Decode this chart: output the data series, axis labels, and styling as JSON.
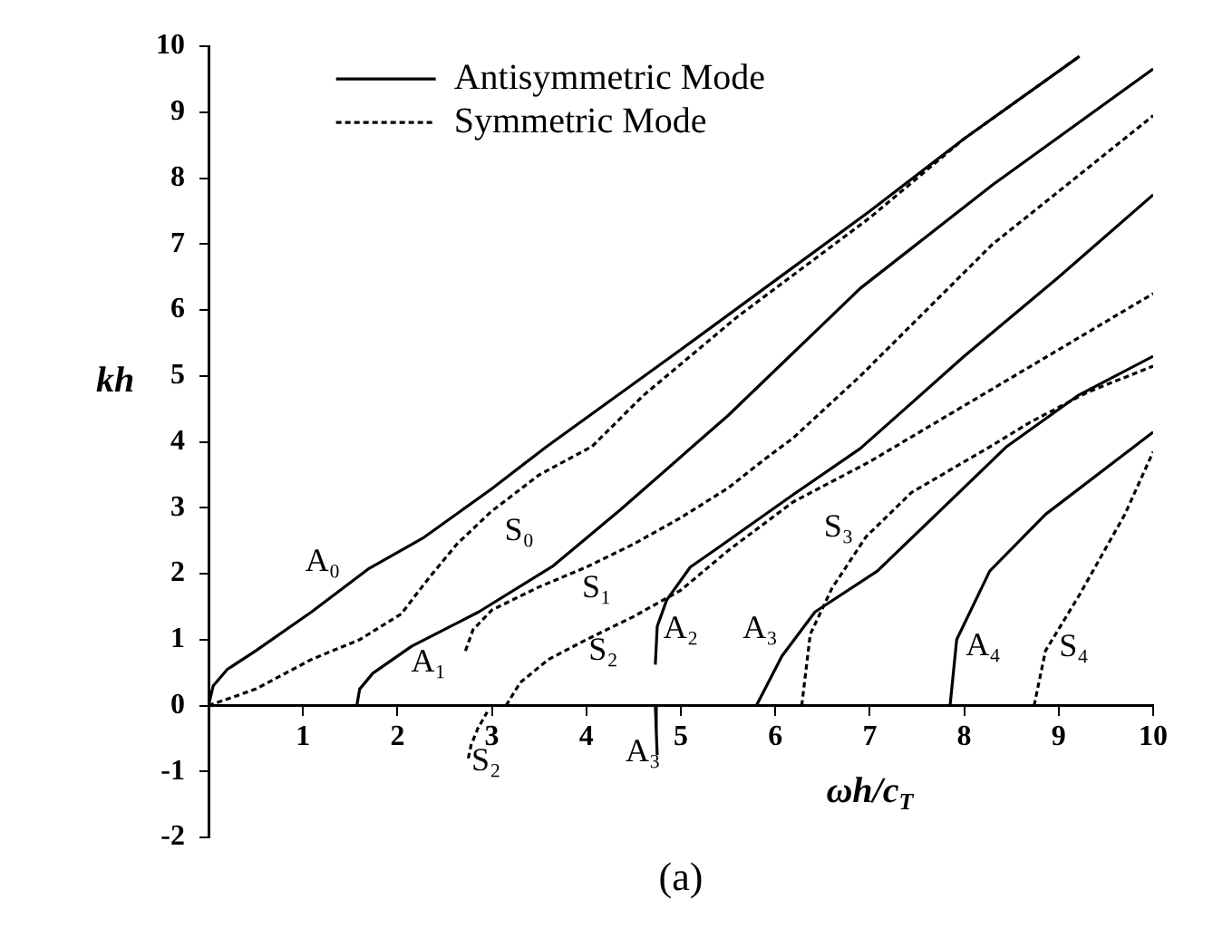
{
  "chart_data": {
    "type": "line",
    "xlabel": "ωh/c$_{T}$",
    "ylabel": "kh",
    "xlim": [
      0,
      10
    ],
    "ylim": [
      -2,
      10
    ],
    "xticks": [
      1,
      2,
      3,
      4,
      5,
      6,
      7,
      8,
      9,
      10
    ],
    "yticks": [
      -2,
      -1,
      0,
      1,
      2,
      3,
      4,
      5,
      6,
      7,
      8,
      9,
      10
    ],
    "grid": false,
    "legend": "top left",
    "marker": "none",
    "series": [
      {
        "name": "Antisymmetric Mode",
        "color": "#000000",
        "line_style": "solid",
        "x": [
          0,
          0.05,
          0.2,
          0.5,
          1.09,
          1.69,
          2.28,
          2.99,
          3.58,
          5,
          6,
          7,
          8,
          9.22
        ],
        "values": [
          0,
          0.3,
          0.55,
          0.83,
          1.42,
          2.07,
          2.55,
          3.28,
          3.93,
          5.4,
          6.45,
          7.5,
          8.6,
          9.85
        ]
      },
      {
        "name": "Symmetric Mode",
        "color": "#000000",
        "line_style": "dashed",
        "x": [
          0,
          0.5,
          1.09,
          1.6,
          2.04,
          2.33,
          2.63,
          2.99,
          3.5,
          4.06,
          4.6,
          5.6,
          7,
          8,
          9.22
        ],
        "values": [
          0,
          0.25,
          0.7,
          1.0,
          1.39,
          1.93,
          2.45,
          2.94,
          3.5,
          3.93,
          4.7,
          5.9,
          7.4,
          8.6,
          9.85
        ]
      },
      {
        "color": "#000000",
        "line_style": "solid",
        "x": [
          1.57,
          1.6,
          1.74,
          2.15,
          2.86,
          3.65,
          4.36,
          5.5,
          6.9,
          8.3,
          10
        ],
        "values": [
          0,
          0.25,
          0.49,
          0.9,
          1.42,
          2.12,
          2.97,
          4.4,
          6.33,
          7.9,
          9.66
        ]
      },
      {
        "color": "#000000",
        "line_style": "dashed",
        "x": [
          2.72,
          2.8,
          3.0,
          3.5,
          4,
          4.5,
          5,
          5.5,
          5.89,
          6.19,
          6.9,
          8.3,
          9,
          10
        ],
        "values": [
          0.83,
          1.15,
          1.45,
          1.8,
          2.1,
          2.45,
          2.85,
          3.3,
          3.74,
          4.06,
          5.0,
          7.0,
          7.8,
          8.95
        ]
      },
      {
        "color": "#000000",
        "line_style": "dashed",
        "x": [
          3.15,
          3.3,
          3.6,
          4,
          4.5,
          5,
          5.5,
          6.19,
          7,
          8,
          9,
          10
        ],
        "values": [
          0,
          0.35,
          0.7,
          1.0,
          1.35,
          1.75,
          2.35,
          3.09,
          3.7,
          4.55,
          5.4,
          6.25
        ]
      },
      {
        "color": "#000000",
        "line_style": "dashed",
        "x": [
          2.75,
          2.78,
          2.85,
          2.95
        ],
        "values": [
          -0.8,
          -0.6,
          -0.35,
          -0.1
        ]
      },
      {
        "color": "#000000",
        "line_style": "solid",
        "x": [
          4.73,
          4.75,
          4.85,
          5.1,
          5.4,
          6.19,
          6.9,
          8,
          9,
          10
        ],
        "values": [
          0.62,
          1.2,
          1.6,
          2.1,
          2.4,
          3.2,
          3.9,
          5.3,
          6.5,
          7.75
        ]
      },
      {
        "color": "#000000",
        "line_style": "solid",
        "x": [
          4.73,
          4.74,
          4.75
        ],
        "values": [
          0,
          -0.4,
          -0.75
        ]
      },
      {
        "color": "#000000",
        "line_style": "solid",
        "x": [
          5.8,
          6.07,
          6.42,
          7.08,
          8.45,
          9.2,
          10
        ],
        "values": [
          0,
          0.75,
          1.42,
          2.04,
          3.93,
          4.7,
          5.3
        ]
      },
      {
        "color": "#000000",
        "line_style": "dashed",
        "x": [
          6.28,
          6.37,
          6.6,
          6.96,
          7.44,
          8.3,
          8.7,
          9.3,
          10
        ],
        "values": [
          0,
          1.08,
          1.78,
          2.56,
          3.23,
          3.95,
          4.3,
          4.75,
          5.15
        ]
      },
      {
        "color": "#000000",
        "line_style": "solid",
        "x": [
          7.85,
          7.92,
          8.27,
          8.86,
          9.8,
          10
        ],
        "values": [
          0,
          1.0,
          2.04,
          2.9,
          3.93,
          4.15
        ]
      },
      {
        "color": "#000000",
        "line_style": "dashed",
        "x": [
          8.74,
          8.86,
          9.22,
          9.7,
          10
        ],
        "values": [
          0,
          0.83,
          1.68,
          2.9,
          3.85
        ]
      }
    ],
    "annotations": [
      "A₀",
      "S₀",
      "A₁",
      "S₁",
      "S₂",
      "S₂",
      "A₃",
      "A₂",
      "A₃",
      "S₃",
      "A₄",
      "S₄",
      "(a)"
    ]
  }
}
